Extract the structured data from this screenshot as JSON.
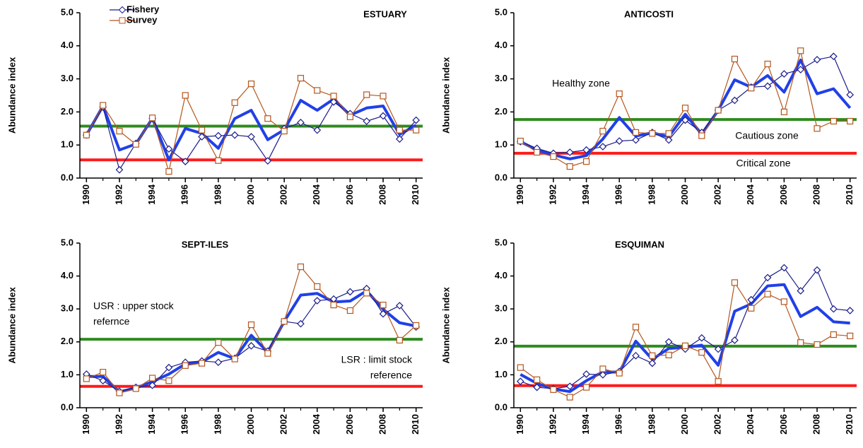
{
  "chart_data": [
    {
      "type": "line",
      "title": "ESTUARY",
      "y_label": "Abundance index",
      "legend": true,
      "x": [
        1990,
        1991,
        1992,
        1993,
        1994,
        1995,
        1996,
        1997,
        1998,
        1999,
        2000,
        2001,
        2002,
        2003,
        2004,
        2005,
        2006,
        2007,
        2008,
        2009,
        2010
      ],
      "xlim": [
        1989.6,
        2010.4
      ],
      "xticks": [
        1990,
        1992,
        1994,
        1996,
        1998,
        2000,
        2002,
        2004,
        2006,
        2008,
        2010
      ],
      "ylim": [
        0,
        5
      ],
      "yticks": [
        {
          "value": 0,
          "label": "0.0"
        },
        {
          "value": 1,
          "label": "1.0"
        },
        {
          "value": 2,
          "label": "2.0"
        },
        {
          "value": 3,
          "label": "3.0"
        },
        {
          "value": 4,
          "label": "4.0"
        },
        {
          "value": 5,
          "label": "5.0"
        }
      ],
      "series": [
        {
          "name": "Fishery",
          "color": "#1c1c8c",
          "marker": "diamond",
          "values": [
            1.3,
            2.15,
            0.25,
            1.05,
            1.8,
            0.88,
            0.5,
            1.25,
            1.28,
            1.3,
            1.25,
            0.52,
            1.5,
            1.68,
            1.45,
            2.3,
            1.95,
            1.72,
            1.88,
            1.18,
            1.75
          ]
        },
        {
          "name": "Survey",
          "color": "#b5561c",
          "marker": "square",
          "values": [
            1.3,
            2.2,
            1.42,
            1.02,
            1.82,
            0.2,
            2.5,
            1.45,
            0.53,
            2.28,
            2.85,
            1.8,
            1.42,
            3.02,
            2.65,
            2.48,
            1.85,
            2.52,
            2.48,
            1.45,
            1.45
          ]
        },
        {
          "color": "#2040e8",
          "values": [
            1.3,
            2.18,
            0.85,
            1.03,
            1.81,
            0.55,
            1.5,
            1.35,
            0.9,
            1.8,
            2.05,
            1.16,
            1.46,
            2.35,
            2.05,
            2.39,
            1.9,
            2.12,
            2.18,
            1.32,
            1.6
          ]
        }
      ],
      "hlines": [
        {
          "value": 1.57,
          "color": "#2e8b1e"
        },
        {
          "value": 0.55,
          "color": "#ff1a1a"
        }
      ],
      "annotations": []
    },
    {
      "type": "line",
      "title": "ANTICOSTI",
      "y_label": "Abundance index",
      "legend": false,
      "x": [
        1990,
        1991,
        1992,
        1993,
        1994,
        1995,
        1996,
        1997,
        1998,
        1999,
        2000,
        2001,
        2002,
        2003,
        2004,
        2005,
        2006,
        2007,
        2008,
        2009,
        2010
      ],
      "xlim": [
        1989.6,
        2010.4
      ],
      "xticks": [
        1990,
        1992,
        1994,
        1996,
        1998,
        2000,
        2002,
        2004,
        2006,
        2008,
        2010
      ],
      "ylim": [
        0,
        5
      ],
      "yticks": [
        {
          "value": 0,
          "label": "0.0"
        },
        {
          "value": 1,
          "label": "1.0"
        },
        {
          "value": 2,
          "label": "2.0"
        },
        {
          "value": 3,
          "label": "3.0"
        },
        {
          "value": 4,
          "label": "4.0"
        },
        {
          "value": 5,
          "label": "5.0"
        }
      ],
      "series": [
        {
          "color": "#1c1c8c",
          "marker": "diamond",
          "values": [
            1.1,
            0.9,
            0.75,
            0.78,
            0.85,
            0.95,
            1.12,
            1.15,
            1.38,
            1.15,
            1.75,
            1.38,
            2.05,
            2.35,
            2.75,
            2.78,
            3.15,
            3.28,
            3.58,
            3.68,
            2.52
          ]
        },
        {
          "color": "#b5561c",
          "marker": "square",
          "values": [
            1.12,
            0.78,
            0.65,
            0.35,
            0.5,
            1.42,
            2.55,
            1.38,
            1.35,
            1.35,
            2.12,
            1.28,
            2.05,
            3.6,
            2.72,
            3.45,
            2.0,
            3.85,
            1.5,
            1.72,
            1.72
          ]
        },
        {
          "color": "#2040e8",
          "values": [
            1.1,
            0.85,
            0.7,
            0.58,
            0.68,
            1.18,
            1.83,
            1.27,
            1.37,
            1.25,
            1.93,
            1.33,
            2.05,
            2.97,
            2.75,
            3.1,
            2.6,
            3.57,
            2.55,
            2.7,
            2.12
          ]
        }
      ],
      "hlines": [
        {
          "value": 1.77,
          "color": "#2e8b1e"
        },
        {
          "value": 0.75,
          "color": "#ff1a1a"
        }
      ],
      "annotations": [
        [
          "Healthy zone"
        ],
        [
          "Cautious zone"
        ],
        [
          "Critical zone"
        ]
      ]
    },
    {
      "type": "line",
      "title": "SEPT-ILES",
      "y_label": "Abundance index",
      "legend": false,
      "x": [
        1990,
        1991,
        1992,
        1993,
        1994,
        1995,
        1996,
        1997,
        1998,
        1999,
        2000,
        2001,
        2002,
        2003,
        2004,
        2005,
        2006,
        2007,
        2008,
        2009,
        2010
      ],
      "xlim": [
        1989.6,
        2010.4
      ],
      "xticks": [
        1990,
        1992,
        1994,
        1996,
        1998,
        2000,
        2002,
        2004,
        2006,
        2008,
        2010
      ],
      "ylim": [
        0,
        5
      ],
      "yticks": [
        {
          "value": 0,
          "label": "0.0"
        },
        {
          "value": 1,
          "label": "1.0"
        },
        {
          "value": 2,
          "label": "2.0"
        },
        {
          "value": 3,
          "label": "3.0"
        },
        {
          "value": 4,
          "label": "4.0"
        },
        {
          "value": 5,
          "label": "5.0"
        }
      ],
      "series": [
        {
          "color": "#1c1c8c",
          "marker": "diamond",
          "values": [
            1.02,
            0.82,
            0.5,
            0.62,
            0.68,
            1.22,
            1.38,
            1.42,
            1.38,
            1.5,
            1.88,
            1.72,
            2.62,
            2.55,
            3.25,
            3.3,
            3.52,
            3.62,
            2.85,
            3.1,
            2.45
          ]
        },
        {
          "color": "#b5561c",
          "marker": "square",
          "values": [
            0.88,
            1.08,
            0.45,
            0.58,
            0.9,
            0.82,
            1.28,
            1.35,
            1.98,
            1.48,
            2.52,
            1.65,
            2.62,
            4.28,
            3.68,
            3.12,
            2.95,
            3.48,
            3.12,
            2.05,
            2.5
          ]
        },
        {
          "color": "#2040e8",
          "values": [
            0.95,
            0.95,
            0.48,
            0.6,
            0.79,
            1.02,
            1.33,
            1.39,
            1.68,
            1.49,
            2.2,
            1.69,
            2.62,
            3.42,
            3.47,
            3.21,
            3.24,
            3.55,
            2.99,
            2.58,
            2.48
          ]
        }
      ],
      "hlines": [
        {
          "value": 2.08,
          "color": "#2e8b1e"
        },
        {
          "value": 0.65,
          "color": "#ff1a1a"
        }
      ],
      "annotations": [
        [
          "USR : upper stock",
          "refernce"
        ],
        [
          "LSR : limit stock",
          "reference"
        ]
      ]
    },
    {
      "type": "line",
      "title": "ESQUIMAN",
      "y_label": "Abundance index",
      "legend": false,
      "x": [
        1990,
        1991,
        1992,
        1993,
        1994,
        1995,
        1996,
        1997,
        1998,
        1999,
        2000,
        2001,
        2002,
        2003,
        2004,
        2005,
        2006,
        2007,
        2008,
        2009,
        2010
      ],
      "xlim": [
        1989.6,
        2010.4
      ],
      "xticks": [
        1990,
        1992,
        1994,
        1996,
        1998,
        2000,
        2002,
        2004,
        2006,
        2008,
        2010
      ],
      "ylim": [
        0,
        5
      ],
      "yticks": [
        {
          "value": 0,
          "label": "0.0"
        },
        {
          "value": 1,
          "label": "1.0"
        },
        {
          "value": 2,
          "label": "2.0"
        },
        {
          "value": 3,
          "label": "3.0"
        },
        {
          "value": 4,
          "label": "4.0"
        },
        {
          "value": 5,
          "label": "5.0"
        }
      ],
      "series": [
        {
          "color": "#1c1c8c",
          "marker": "diamond",
          "values": [
            0.8,
            0.62,
            0.58,
            0.65,
            1.02,
            1.0,
            1.1,
            1.58,
            1.35,
            2.0,
            1.78,
            2.12,
            1.78,
            2.05,
            3.28,
            3.95,
            4.25,
            3.55,
            4.18,
            3.0,
            2.95
          ]
        },
        {
          "color": "#b5561c",
          "marker": "square",
          "values": [
            1.22,
            0.85,
            0.55,
            0.32,
            0.62,
            1.18,
            1.05,
            2.45,
            1.58,
            1.6,
            1.88,
            1.68,
            0.8,
            3.8,
            3.02,
            3.45,
            3.22,
            1.98,
            1.92,
            2.22,
            2.18
          ]
        },
        {
          "color": "#2040e8",
          "values": [
            1.01,
            0.74,
            0.57,
            0.49,
            0.82,
            1.09,
            1.08,
            2.02,
            1.47,
            1.8,
            1.83,
            1.9,
            1.29,
            2.93,
            3.15,
            3.7,
            3.74,
            2.77,
            3.05,
            2.61,
            2.57
          ]
        }
      ],
      "hlines": [
        {
          "value": 1.87,
          "color": "#2e8b1e"
        },
        {
          "value": 0.67,
          "color": "#ff1a1a"
        }
      ],
      "annotations": []
    }
  ]
}
